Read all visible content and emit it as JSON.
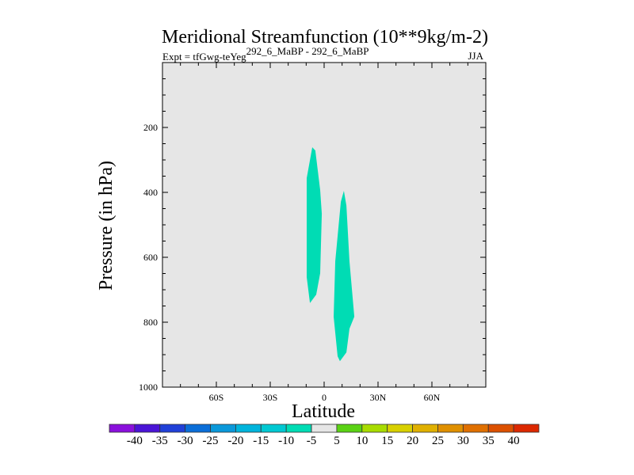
{
  "chart_data": {
    "type": "heatmap",
    "title": "Meridional Streamfunction (10**9kg/m-2)",
    "subtitle_left": "Expt = tfGwg-teYeg",
    "subtitle_sup": "292_6_MaBP - 292_6_MaBP",
    "subtitle_right": "JJA",
    "xlabel": "Latitude",
    "ylabel": "Pressure (in hPa)",
    "xlim": [
      -90,
      90
    ],
    "ylim": [
      1000,
      0
    ],
    "xticks": [
      {
        "value": -60,
        "label": "60S"
      },
      {
        "value": -30,
        "label": "30S"
      },
      {
        "value": 0,
        "label": "0"
      },
      {
        "value": 30,
        "label": "30N"
      },
      {
        "value": 60,
        "label": "60N"
      }
    ],
    "yticks": [
      {
        "value": 200,
        "label": "200"
      },
      {
        "value": 400,
        "label": "400"
      },
      {
        "value": 600,
        "label": "600"
      },
      {
        "value": 800,
        "label": "800"
      },
      {
        "value": 1000,
        "label": "1000"
      }
    ],
    "background_color": "#e6e6e6",
    "regions": [
      {
        "name": "negative-cell-south",
        "range": [
          -10,
          -5
        ],
        "color": "#00dcb4",
        "points": [
          [
            -7.9,
            741
          ],
          [
            -9.7,
            661
          ],
          [
            -9.7,
            356
          ],
          [
            -6.6,
            261
          ],
          [
            -4.9,
            271
          ],
          [
            -2.2,
            393
          ],
          [
            -1.3,
            466
          ],
          [
            -2.2,
            649
          ],
          [
            -4.4,
            715
          ]
        ]
      },
      {
        "name": "negative-cell-north",
        "range": [
          -10,
          -5
        ],
        "color": "#00dcb4",
        "points": [
          [
            7.5,
            905
          ],
          [
            5.3,
            783
          ],
          [
            6.2,
            612
          ],
          [
            9.3,
            429
          ],
          [
            11,
            395
          ],
          [
            12.4,
            441
          ],
          [
            14.1,
            612
          ],
          [
            16.8,
            783
          ],
          [
            14.1,
            820
          ],
          [
            12.4,
            893
          ],
          [
            8.8,
            920
          ]
        ]
      }
    ],
    "colorbar": {
      "labels": [
        "-40",
        "-35",
        "-30",
        "-25",
        "-20",
        "-15",
        "-10",
        "-5",
        "5",
        "10",
        "15",
        "20",
        "25",
        "30",
        "35",
        "40"
      ],
      "colors": [
        "#8a10dc",
        "#4a14d6",
        "#2040d8",
        "#0a6ed8",
        "#0a98da",
        "#00b4dc",
        "#00c8d2",
        "#00dcb4",
        "#e6e6e6",
        "#5ad214",
        "#a8dc00",
        "#d8d000",
        "#e0b000",
        "#e09000",
        "#e07000",
        "#dc5000",
        "#dc2800"
      ]
    }
  }
}
